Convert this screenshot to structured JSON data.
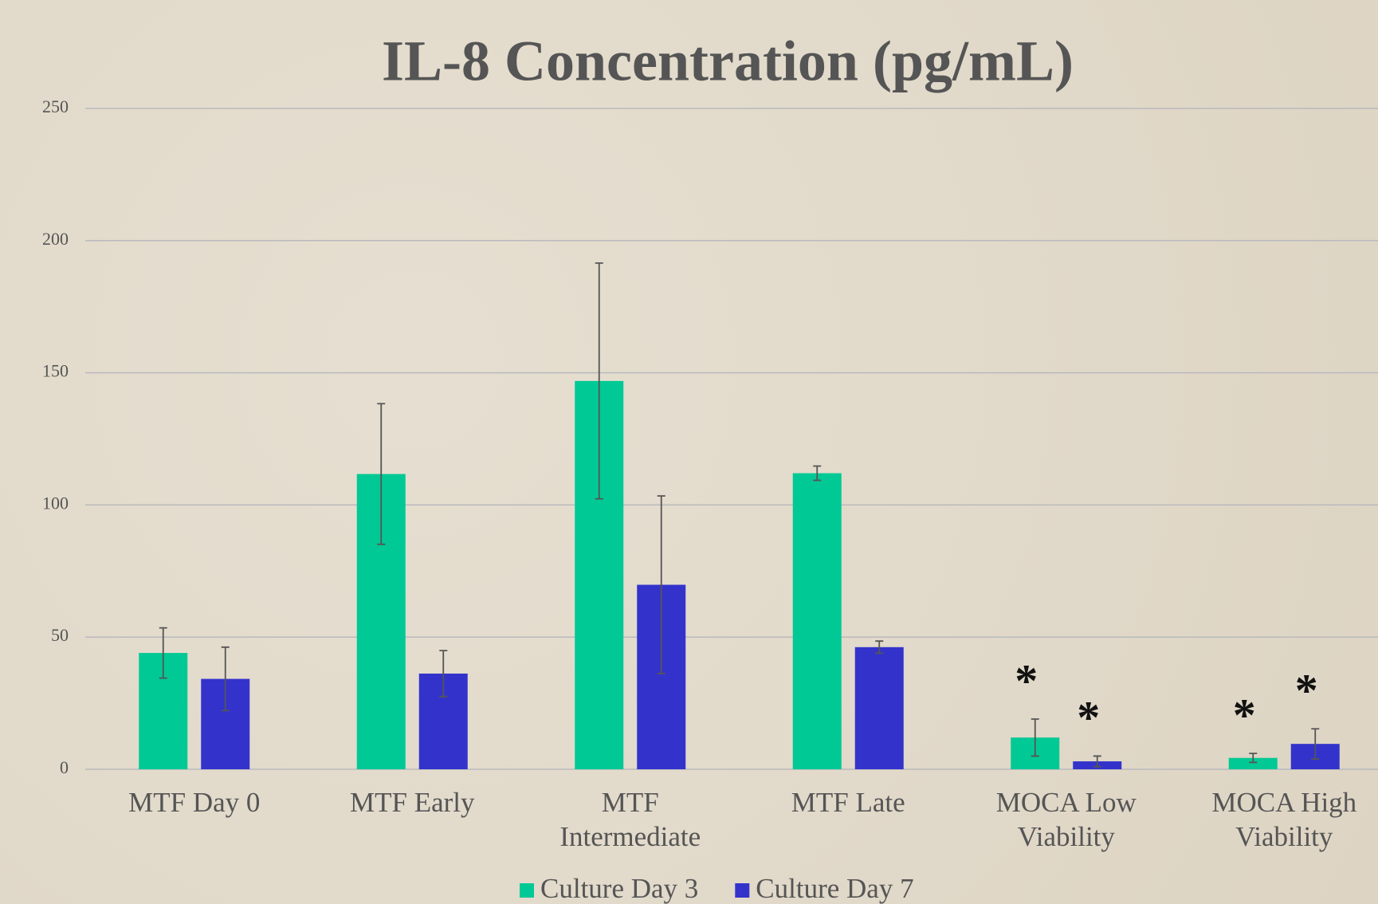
{
  "chart_data": {
    "type": "bar",
    "title": "IL-8 Concentration (pg/mL)",
    "categories": [
      "MTF Day 0",
      "MTF Early",
      "MTF\nIntermediate",
      "MTF Late",
      "MOCA Low\nViability",
      "MOCA High\nViability"
    ],
    "series": [
      {
        "name": "Culture Day 3",
        "color": "#00c995",
        "values": [
          44,
          111.7,
          146.9,
          112,
          12,
          4.3
        ],
        "errors": [
          9.5,
          26.6,
          44.6,
          2.7,
          7,
          1.7
        ],
        "annotations": [
          null,
          null,
          null,
          null,
          "*",
          "*"
        ]
      },
      {
        "name": "Culture Day 7",
        "color": "#3333cc",
        "values": [
          34.2,
          36.2,
          69.8,
          46.2,
          3,
          9.6
        ],
        "errors": [
          12,
          8.7,
          33.6,
          2.3,
          2,
          5.7
        ],
        "annotations": [
          null,
          null,
          null,
          null,
          "*",
          "*"
        ]
      }
    ],
    "ylim": [
      0,
      250
    ],
    "yticks": [
      0,
      50,
      100,
      150,
      200,
      250
    ],
    "grid": true,
    "legend": "bottom"
  }
}
